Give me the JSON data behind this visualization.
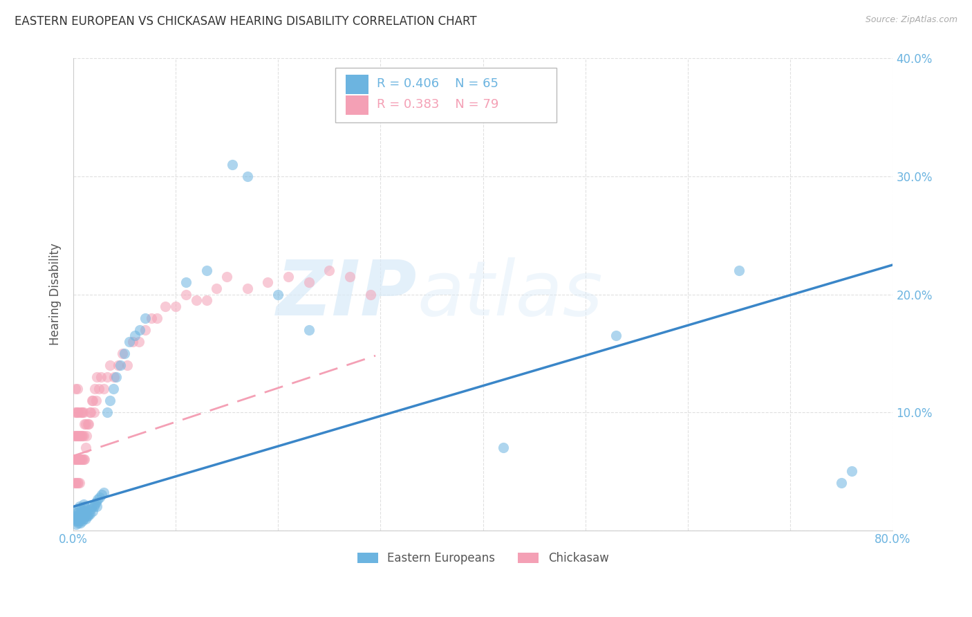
{
  "title": "EASTERN EUROPEAN VS CHICKASAW HEARING DISABILITY CORRELATION CHART",
  "source": "Source: ZipAtlas.com",
  "ylabel": "Hearing Disability",
  "xlim": [
    0,
    0.8
  ],
  "ylim": [
    0,
    0.4
  ],
  "xticks": [
    0.0,
    0.1,
    0.2,
    0.3,
    0.4,
    0.5,
    0.6,
    0.7,
    0.8
  ],
  "yticks": [
    0.0,
    0.1,
    0.2,
    0.3,
    0.4
  ],
  "xtick_labels": [
    "0.0%",
    "",
    "",
    "",
    "",
    "",
    "",
    "",
    "80.0%"
  ],
  "ytick_labels": [
    "",
    "10.0%",
    "20.0%",
    "30.0%",
    "40.0%"
  ],
  "blue_color": "#6cb4e0",
  "pink_color": "#f4a0b5",
  "blue_line_color": "#3a86c8",
  "pink_line_color": "#f4a0b5",
  "blue_label": "Eastern Europeans",
  "pink_label": "Chickasaw",
  "blue_R": 0.406,
  "blue_N": 65,
  "pink_R": 0.383,
  "pink_N": 79,
  "blue_scatter_x": [
    0.001,
    0.002,
    0.002,
    0.003,
    0.003,
    0.003,
    0.004,
    0.004,
    0.004,
    0.005,
    0.005,
    0.005,
    0.006,
    0.006,
    0.006,
    0.007,
    0.007,
    0.008,
    0.008,
    0.009,
    0.009,
    0.01,
    0.01,
    0.01,
    0.011,
    0.011,
    0.012,
    0.012,
    0.013,
    0.013,
    0.014,
    0.015,
    0.016,
    0.017,
    0.018,
    0.019,
    0.02,
    0.021,
    0.022,
    0.023,
    0.024,
    0.026,
    0.028,
    0.03,
    0.033,
    0.036,
    0.039,
    0.042,
    0.046,
    0.05,
    0.055,
    0.06,
    0.065,
    0.07,
    0.11,
    0.13,
    0.155,
    0.17,
    0.2,
    0.23,
    0.42,
    0.53,
    0.65,
    0.75,
    0.76
  ],
  "blue_scatter_y": [
    0.01,
    0.008,
    0.012,
    0.005,
    0.01,
    0.015,
    0.008,
    0.012,
    0.018,
    0.006,
    0.01,
    0.015,
    0.008,
    0.014,
    0.02,
    0.006,
    0.012,
    0.01,
    0.018,
    0.008,
    0.014,
    0.01,
    0.016,
    0.022,
    0.012,
    0.02,
    0.01,
    0.016,
    0.012,
    0.018,
    0.012,
    0.014,
    0.014,
    0.018,
    0.02,
    0.016,
    0.02,
    0.022,
    0.024,
    0.02,
    0.026,
    0.028,
    0.03,
    0.032,
    0.1,
    0.11,
    0.12,
    0.13,
    0.14,
    0.15,
    0.16,
    0.165,
    0.17,
    0.18,
    0.21,
    0.22,
    0.31,
    0.3,
    0.2,
    0.17,
    0.07,
    0.165,
    0.22,
    0.04,
    0.05
  ],
  "pink_scatter_x": [
    0.001,
    0.001,
    0.001,
    0.002,
    0.002,
    0.002,
    0.002,
    0.002,
    0.003,
    0.003,
    0.003,
    0.003,
    0.004,
    0.004,
    0.004,
    0.004,
    0.004,
    0.005,
    0.005,
    0.005,
    0.005,
    0.006,
    0.006,
    0.006,
    0.007,
    0.007,
    0.007,
    0.008,
    0.008,
    0.008,
    0.009,
    0.009,
    0.009,
    0.01,
    0.01,
    0.01,
    0.011,
    0.011,
    0.012,
    0.012,
    0.013,
    0.014,
    0.015,
    0.016,
    0.017,
    0.018,
    0.019,
    0.02,
    0.021,
    0.022,
    0.023,
    0.025,
    0.027,
    0.03,
    0.033,
    0.036,
    0.04,
    0.044,
    0.048,
    0.053,
    0.058,
    0.064,
    0.07,
    0.076,
    0.082,
    0.09,
    0.1,
    0.11,
    0.12,
    0.13,
    0.14,
    0.15,
    0.17,
    0.19,
    0.21,
    0.23,
    0.25,
    0.27,
    0.29
  ],
  "pink_scatter_y": [
    0.04,
    0.06,
    0.08,
    0.04,
    0.06,
    0.08,
    0.1,
    0.12,
    0.04,
    0.06,
    0.08,
    0.1,
    0.04,
    0.06,
    0.08,
    0.1,
    0.12,
    0.04,
    0.06,
    0.08,
    0.1,
    0.04,
    0.06,
    0.08,
    0.06,
    0.08,
    0.1,
    0.06,
    0.08,
    0.1,
    0.06,
    0.08,
    0.1,
    0.06,
    0.08,
    0.1,
    0.06,
    0.09,
    0.07,
    0.09,
    0.08,
    0.09,
    0.09,
    0.1,
    0.1,
    0.11,
    0.11,
    0.1,
    0.12,
    0.11,
    0.13,
    0.12,
    0.13,
    0.12,
    0.13,
    0.14,
    0.13,
    0.14,
    0.15,
    0.14,
    0.16,
    0.16,
    0.17,
    0.18,
    0.18,
    0.19,
    0.19,
    0.2,
    0.195,
    0.195,
    0.205,
    0.215,
    0.205,
    0.21,
    0.215,
    0.21,
    0.22,
    0.215,
    0.2
  ],
  "blue_trend_x": [
    0.0,
    0.8
  ],
  "blue_trend_y": [
    0.02,
    0.225
  ],
  "pink_trend_x": [
    0.0,
    0.295
  ],
  "pink_trend_y": [
    0.063,
    0.148
  ],
  "watermark_zip": "ZIP",
  "watermark_atlas": "atlas",
  "title_fontsize": 12,
  "axis_label_color": "#555555",
  "tick_color_blue": "#6cb4e0",
  "grid_color": "#dddddd",
  "background_color": "#ffffff"
}
